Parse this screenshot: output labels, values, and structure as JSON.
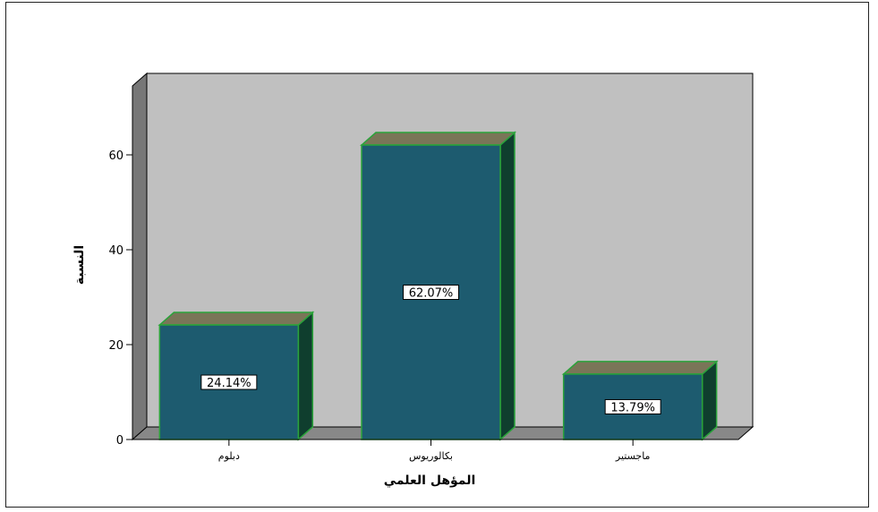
{
  "chart_data": {
    "type": "bar",
    "style": "3d",
    "categories": [
      "دبلوم",
      "بكالوريوس",
      "ماجستير"
    ],
    "values": [
      24.14,
      62.07,
      13.79
    ],
    "data_labels": [
      "24.14%",
      "62.07%",
      "13.79%"
    ],
    "xlabel": "المؤهل العلمي",
    "ylabel": "النسبة",
    "ylim": [
      0,
      70
    ],
    "yticks": [
      0,
      20,
      40,
      60
    ],
    "grid": false,
    "colors": {
      "bar_front": "#1d5b6f",
      "bar_top": "#7a7558",
      "bar_side": "#0f3e2e",
      "bar_edge": "#2aa33a",
      "wall": "#c0c0c0",
      "wall_side": "#777777",
      "floor": "#888888"
    }
  }
}
